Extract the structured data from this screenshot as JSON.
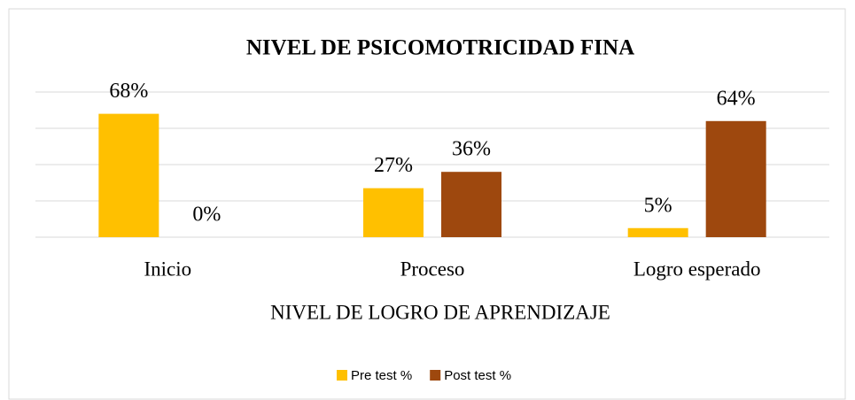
{
  "chart_data": {
    "type": "bar",
    "title": "NIVEL DE PSICOMOTRICIDAD FINA",
    "x_label": "NIVEL DE LOGRO DE APRENDIZAJE",
    "categories": [
      "Inicio",
      "Proceso",
      "Logro esperado"
    ],
    "series": [
      {
        "name": "Pre test %",
        "color": "#ffc000",
        "values": [
          68,
          27,
          5
        ],
        "value_labels": [
          "68%",
          "27%",
          "5%"
        ]
      },
      {
        "name": "Post test %",
        "color": "#9e480e",
        "values": [
          0,
          36,
          64
        ],
        "value_labels": [
          "0%",
          "36%",
          "64%"
        ]
      }
    ],
    "ylim": [
      0,
      80
    ],
    "yticks": [
      0,
      20,
      40,
      60,
      80
    ],
    "grid": true,
    "legend": "bottom"
  }
}
